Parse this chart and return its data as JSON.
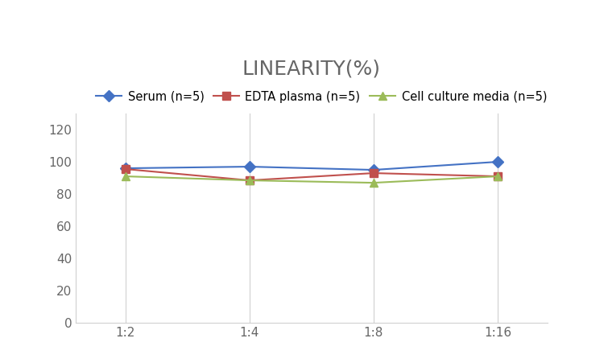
{
  "title": "LINEARITY(%)",
  "title_fontsize": 18,
  "title_fontweight": "normal",
  "title_color": "#666666",
  "x_labels": [
    "1:2",
    "1:4",
    "1:8",
    "1:16"
  ],
  "x_positions": [
    0,
    1,
    2,
    3
  ],
  "serum": [
    96,
    97,
    95,
    100
  ],
  "edta_plasma": [
    95.5,
    88.5,
    93,
    91
  ],
  "cell_culture": [
    91,
    88.5,
    87,
    91
  ],
  "serum_color": "#4472C4",
  "edta_color": "#C0504D",
  "cell_color": "#9BBB59",
  "serum_label": "Serum (n=5)",
  "edta_label": "EDTA plasma (n=5)",
  "cell_label": "Cell culture media (n=5)",
  "ylim": [
    0,
    130
  ],
  "yticks": [
    0,
    20,
    40,
    60,
    80,
    100,
    120
  ],
  "marker_size": 7,
  "linewidth": 1.5,
  "bg_color": "#FFFFFF",
  "grid_color": "#D0D0D0",
  "legend_fontsize": 10.5,
  "tick_fontsize": 11,
  "tick_color": "#666666"
}
